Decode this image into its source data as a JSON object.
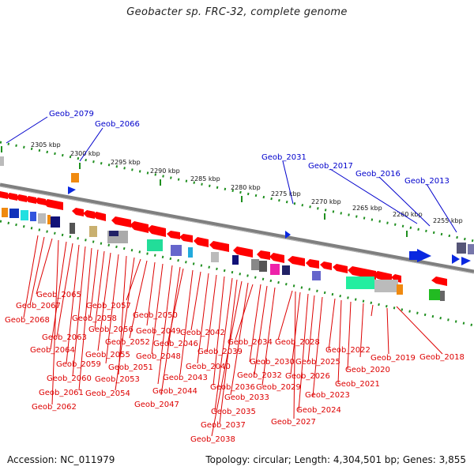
{
  "title": "Geobacter sp. FRC-32, complete genome",
  "footer": {
    "accession": "Accession: NC_011979",
    "summary": "Topology: circular; Length: 4,304,501 bp; Genes: 3,855"
  },
  "colors": {
    "forward_gene": "#ff0000",
    "backbone": "#7f7f7f",
    "tick": "#1f8f1f",
    "blue_label": "#0000cc",
    "red_label": "#dd0000"
  },
  "scale_labels": [
    "2305 kbp",
    "2300 kbp",
    "2295 kbp",
    "2290 kbp",
    "2285 kbp",
    "2280 kbp",
    "2275 kbp",
    "2270 kbp",
    "2265 kbp",
    "2260 kbp",
    "2255 kbp"
  ],
  "blue_labels": [
    "Geob_2079",
    "Geob_2066",
    "Geob_2031",
    "Geob_2017",
    "Geob_2016",
    "Geob_2013"
  ],
  "red_labels": [
    "Geob_2065",
    "Geob_2067",
    "Geob_2068",
    "Geob_2058",
    "Geob_2057",
    "Geob_2063",
    "Geob_2056",
    "Geob_2050",
    "Geob_2064",
    "Geob_2052",
    "Geob_2049",
    "Geob_2042",
    "Geob_2046",
    "Geob_2055",
    "Geob_2048",
    "Geob_2059",
    "Geob_2051",
    "Geob_2039",
    "Geob_2034",
    "Geob_2028",
    "Geob_2022",
    "Geob_2019",
    "Geob_2018",
    "Geob_2060",
    "Geob_2053",
    "Geob_2043",
    "Geob_2040",
    "Geob_2030",
    "Geob_2025",
    "Geob_2020",
    "Geob_2061",
    "Geob_2054",
    "Geob_2044",
    "Geob_2036",
    "Geob_2032",
    "Geob_2026",
    "Geob_2021",
    "Geob_2062",
    "Geob_2047",
    "Geob_2033",
    "Geob_2029",
    "Geob_2023",
    "Geob_2035",
    "Geob_2024",
    "Geob_2037",
    "Geob_2027",
    "Geob_2038"
  ]
}
